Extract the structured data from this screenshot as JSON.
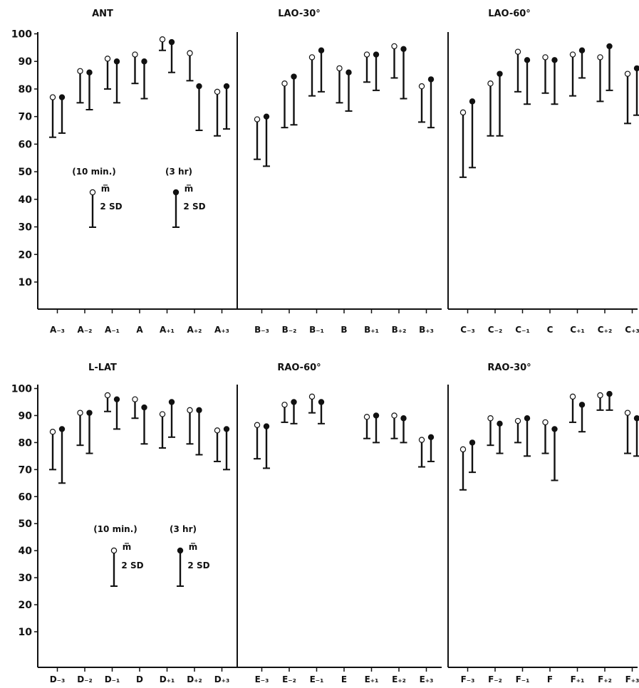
{
  "chart_data": [
    {
      "type": "scatter",
      "title": "ANT",
      "ylim": [
        0,
        100
      ],
      "yticks": [
        10,
        20,
        30,
        40,
        50,
        60,
        70,
        80,
        90,
        100
      ],
      "show_yticks": true,
      "categories": [
        "A₋₃",
        "A₋₂",
        "A₋₁",
        "A",
        "A₊₁",
        "A₊₂",
        "A₊₃"
      ],
      "series": [
        {
          "marker": "open",
          "mean": [
            77,
            86.5,
            91,
            92.5,
            98,
            93,
            79
          ],
          "lower": [
            62.5,
            75,
            80,
            82,
            94,
            83,
            63
          ]
        },
        {
          "marker": "filled",
          "mean": [
            77,
            86,
            90,
            90,
            97,
            81,
            81
          ],
          "lower": [
            64,
            72.5,
            75,
            76.5,
            86,
            65,
            65.5
          ]
        }
      ],
      "legend": {
        "open_label": "(10 min.)",
        "filled_label": "(3 hr)",
        "mean_label": "m̅",
        "sd_label": "2 SD"
      }
    },
    {
      "type": "scatter",
      "title": "LAO-30°",
      "ylim": [
        0,
        100
      ],
      "show_yticks": false,
      "categories": [
        "B₋₃",
        "B₋₂",
        "B₋₁",
        "B",
        "B₊₁",
        "B₊₂",
        "B₊₃"
      ],
      "series": [
        {
          "marker": "open",
          "mean": [
            69,
            82,
            91.5,
            87.5,
            92.5,
            95.5,
            81
          ],
          "lower": [
            54.5,
            66,
            77.5,
            75,
            82.5,
            84,
            68
          ]
        },
        {
          "marker": "filled",
          "mean": [
            70,
            84.5,
            94,
            86,
            92.5,
            94.5,
            83.5
          ],
          "lower": [
            52,
            67,
            79,
            72,
            79.5,
            76.5,
            66
          ]
        }
      ]
    },
    {
      "type": "scatter",
      "title": "LAO-60°",
      "ylim": [
        0,
        100
      ],
      "show_yticks": false,
      "categories": [
        "C₋₃",
        "C₋₂",
        "C₋₁",
        "C",
        "C₊₁",
        "C₊₂",
        "C₊₃"
      ],
      "series": [
        {
          "marker": "open",
          "mean": [
            71.5,
            82,
            93.5,
            91.5,
            92.5,
            91.5,
            85.5
          ],
          "lower": [
            48,
            63,
            79,
            78.5,
            77.5,
            75.5,
            67.5
          ]
        },
        {
          "marker": "filled",
          "mean": [
            75.5,
            85.5,
            90.5,
            90.5,
            94,
            95.5,
            87.5
          ],
          "lower": [
            51.5,
            63,
            74.5,
            74.5,
            84,
            79.5,
            70.5
          ]
        }
      ]
    },
    {
      "type": "scatter",
      "title": "L-LAT",
      "ylim": [
        0,
        100
      ],
      "yticks": [
        10,
        20,
        30,
        40,
        50,
        60,
        70,
        80,
        90,
        100
      ],
      "show_yticks": true,
      "categories": [
        "D₋₃",
        "D₋₂",
        "D₋₁",
        "D",
        "D₊₁",
        "D₊₂",
        "D₊₃"
      ],
      "series": [
        {
          "marker": "open",
          "mean": [
            84,
            91,
            97.5,
            96,
            90.5,
            92,
            84.5
          ],
          "lower": [
            70,
            79,
            91.5,
            89,
            78,
            79.5,
            73
          ]
        },
        {
          "marker": "filled",
          "mean": [
            85,
            91,
            96,
            93,
            95,
            92,
            85
          ],
          "lower": [
            65,
            76,
            85,
            79.5,
            82,
            75.5,
            70
          ]
        }
      ],
      "legend": {
        "open_label": "(10 min.)",
        "filled_label": "(3 hr)",
        "mean_label": "m̅",
        "sd_label": "2 SD"
      }
    },
    {
      "type": "scatter",
      "title": "RAO-60°",
      "ylim": [
        0,
        100
      ],
      "show_yticks": false,
      "categories": [
        "E₋₃",
        "E₋₂",
        "E₋₁",
        "E",
        "E₊₁",
        "E₊₂",
        "E₊₃"
      ],
      "series": [
        {
          "marker": "open",
          "mean": [
            86.5,
            94,
            97,
            null,
            89.5,
            90,
            81
          ],
          "lower": [
            74,
            87.5,
            91,
            null,
            81.5,
            81.5,
            71
          ]
        },
        {
          "marker": "filled",
          "mean": [
            86,
            95,
            95,
            null,
            90,
            89,
            82
          ],
          "lower": [
            70.5,
            87,
            87,
            null,
            80,
            80,
            73
          ]
        }
      ]
    },
    {
      "type": "scatter",
      "title": "RAO-30°",
      "ylim": [
        0,
        100
      ],
      "show_yticks": false,
      "categories": [
        "F₋₃",
        "F₋₂",
        "F₋₁",
        "F",
        "F₊₁",
        "F₊₂",
        "F₊₃"
      ],
      "series": [
        {
          "marker": "open",
          "mean": [
            77.5,
            89,
            88,
            87.5,
            97,
            97.5,
            91
          ],
          "lower": [
            62.5,
            79,
            80,
            76,
            87.5,
            92,
            76
          ]
        },
        {
          "marker": "filled",
          "mean": [
            80,
            87,
            89,
            85,
            94,
            98,
            89
          ],
          "lower": [
            69,
            76,
            75,
            66,
            84,
            92,
            75
          ]
        }
      ]
    }
  ]
}
